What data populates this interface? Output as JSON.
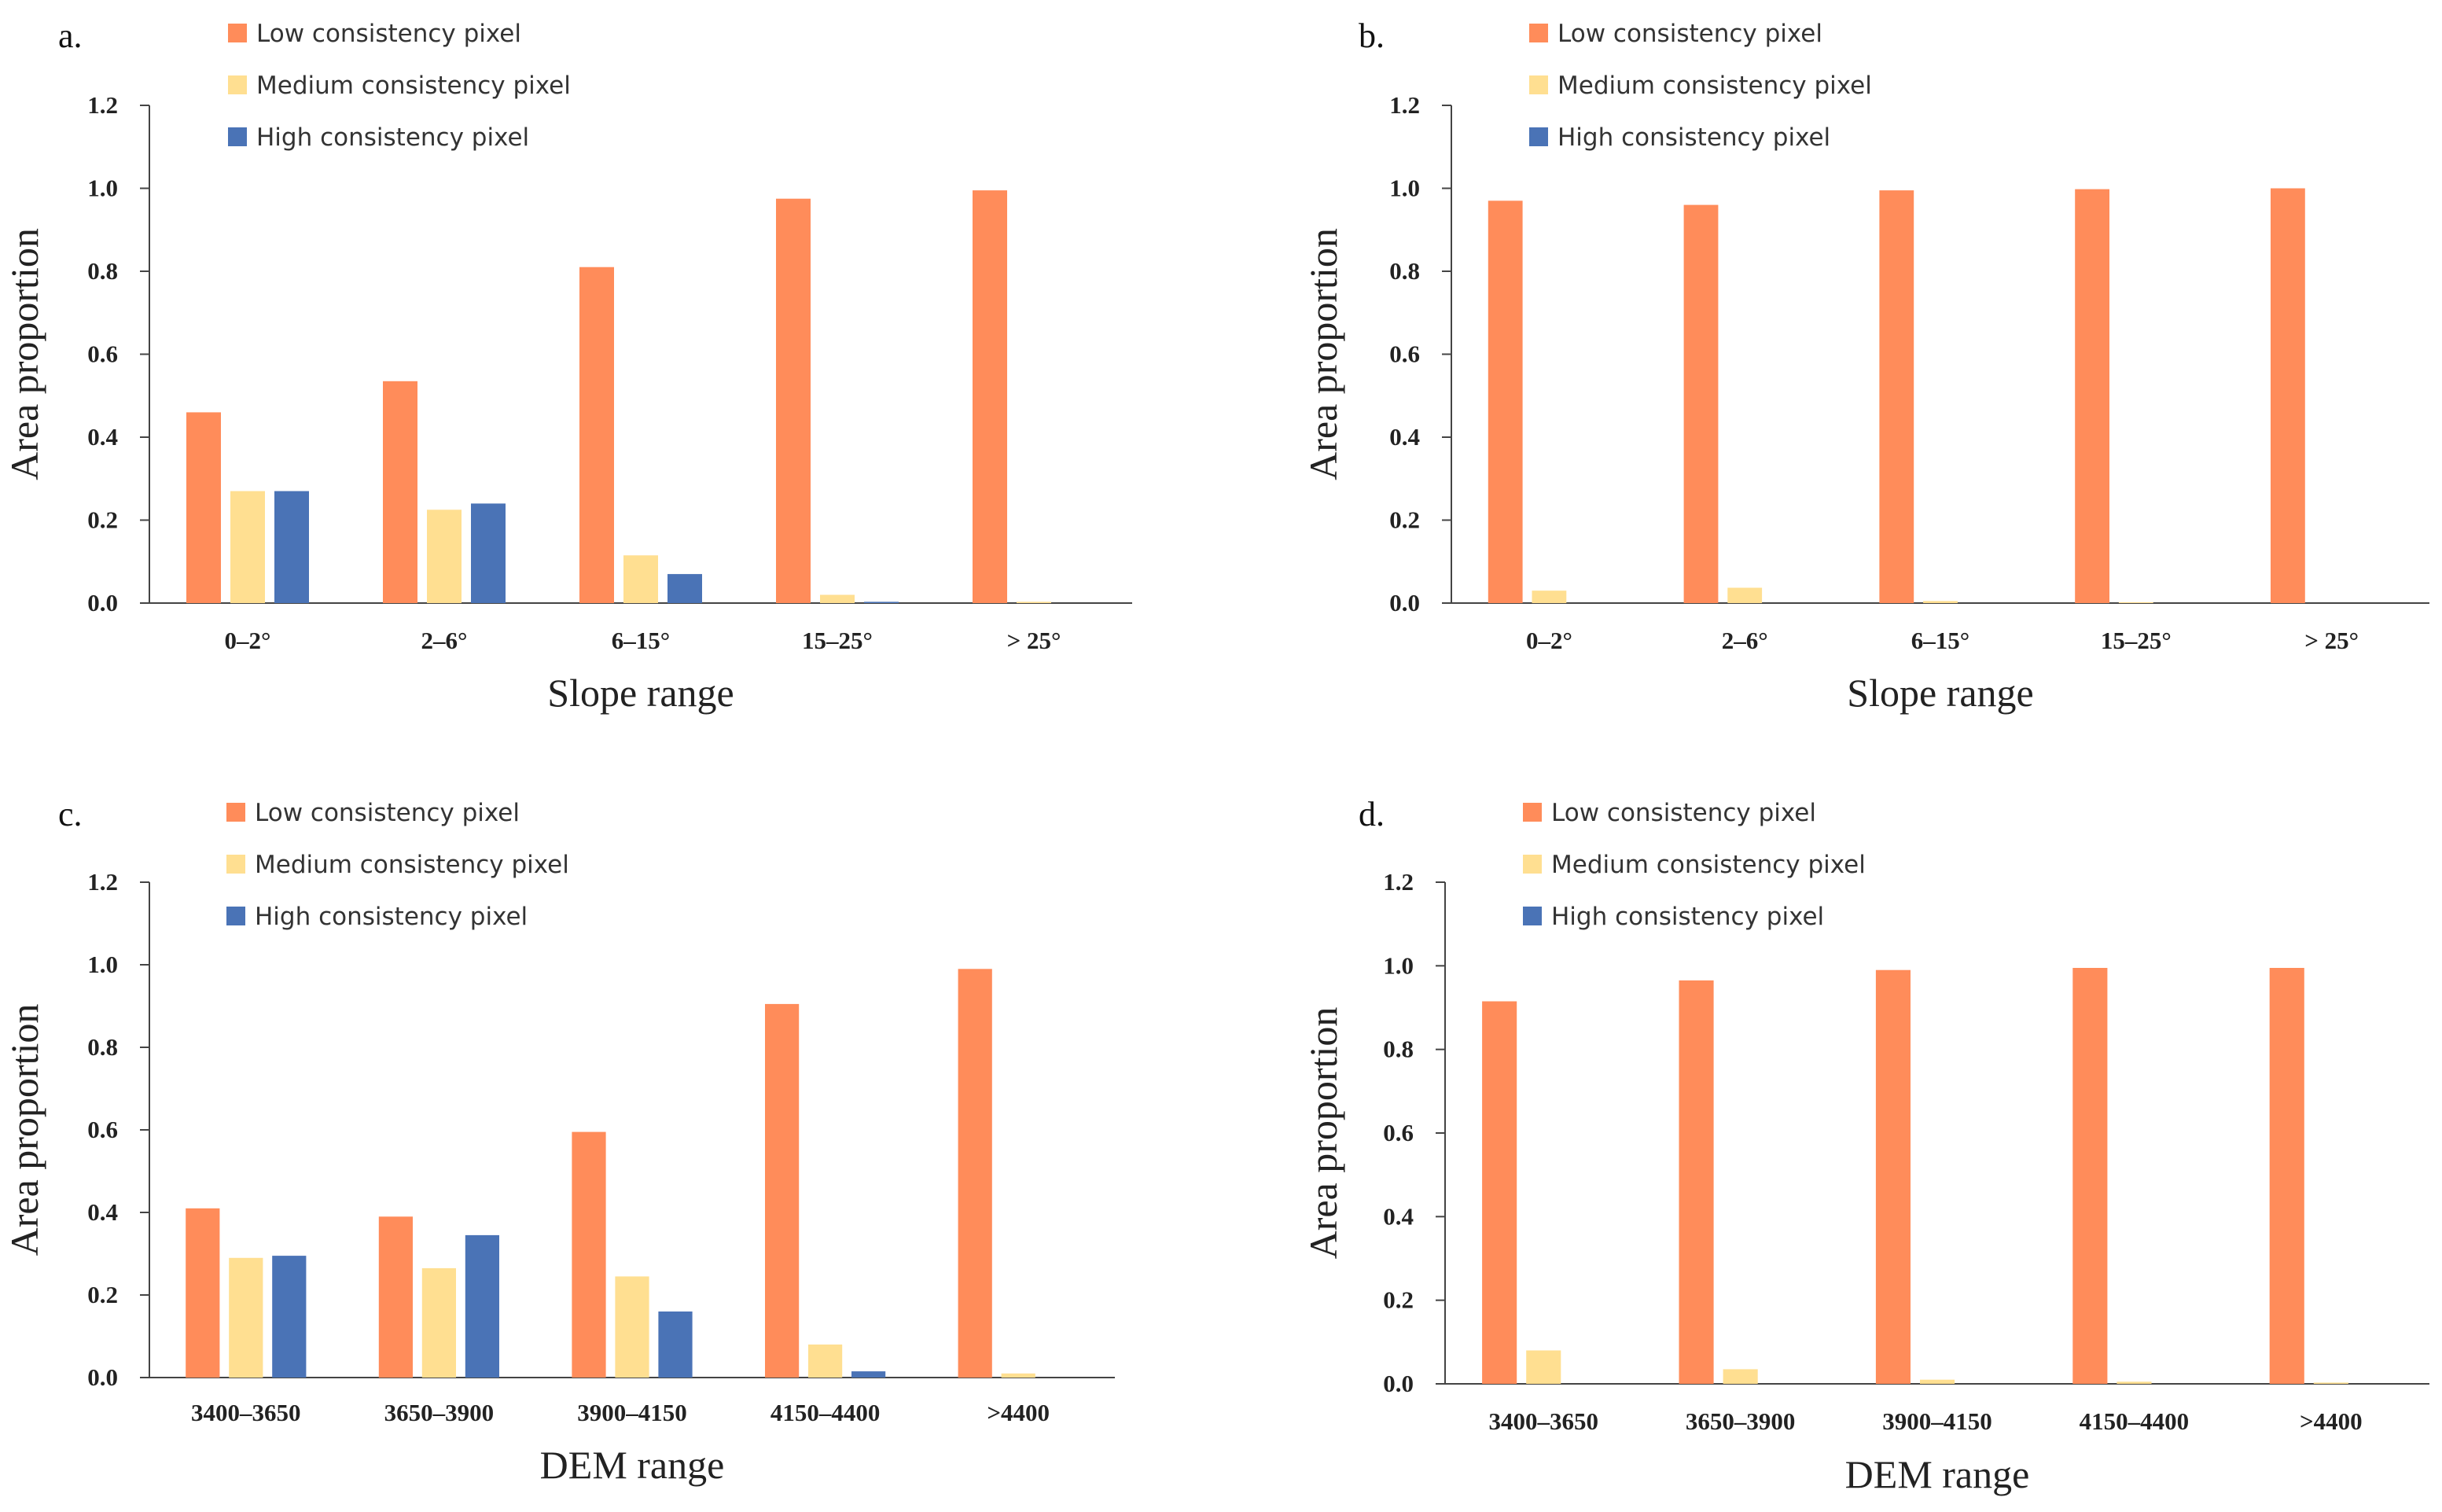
{
  "colors": {
    "low": "#FF8C5A",
    "medium": "#FFDF91",
    "high": "#4A73B6"
  },
  "chart_data": [
    {
      "type": "bar",
      "panel_label": "a.",
      "categories": [
        "0–2°",
        "2–6°",
        "6–15°",
        "15–25°",
        "> 25°"
      ],
      "series": [
        {
          "name": "Low consistency pixel",
          "values": [
            0.46,
            0.535,
            0.81,
            0.975,
            0.995
          ]
        },
        {
          "name": "Medium consistency pixel",
          "values": [
            0.27,
            0.225,
            0.115,
            0.02,
            0.003
          ]
        },
        {
          "name": "High consistency pixel",
          "values": [
            0.27,
            0.24,
            0.07,
            0.003,
            0.0
          ]
        }
      ],
      "xlabel": "Slope range",
      "ylabel": "Area proportion",
      "ylim": [
        0,
        1.2
      ],
      "yticks": [
        "0.0",
        "0.2",
        "0.4",
        "0.6",
        "0.8",
        "1.0",
        "1.2"
      ],
      "legend": "top-left"
    },
    {
      "type": "bar",
      "panel_label": "b.",
      "categories": [
        "0–2°",
        "2–6°",
        "6–15°",
        "15–25°",
        "> 25°"
      ],
      "series": [
        {
          "name": "Low consistency pixel",
          "values": [
            0.97,
            0.96,
            0.995,
            0.998,
            1.0
          ]
        },
        {
          "name": "Medium consistency pixel",
          "values": [
            0.03,
            0.037,
            0.005,
            0.002,
            0.0
          ]
        },
        {
          "name": "High consistency pixel",
          "values": [
            0.0,
            0.0,
            0.0,
            0.0,
            0.0
          ]
        }
      ],
      "xlabel": "Slope range",
      "ylabel": "Area proportion",
      "ylim": [
        0,
        1.2
      ],
      "yticks": [
        "0.0",
        "0.2",
        "0.4",
        "0.6",
        "0.8",
        "1.0",
        "1.2"
      ],
      "legend": "top-left"
    },
    {
      "type": "bar",
      "panel_label": "c.",
      "categories": [
        "3400–3650",
        "3650–3900",
        "3900–4150",
        "4150–4400",
        ">4400"
      ],
      "series": [
        {
          "name": "Low consistency pixel",
          "values": [
            0.41,
            0.39,
            0.595,
            0.905,
            0.99
          ]
        },
        {
          "name": "Medium consistency pixel",
          "values": [
            0.29,
            0.265,
            0.245,
            0.08,
            0.01
          ]
        },
        {
          "name": "High consistency pixel",
          "values": [
            0.295,
            0.345,
            0.16,
            0.015,
            0.0
          ]
        }
      ],
      "xlabel": "DEM range",
      "ylabel": "Area proportion",
      "ylim": [
        0,
        1.2
      ],
      "yticks": [
        "0.0",
        "0.2",
        "0.4",
        "0.6",
        "0.8",
        "1.0",
        "1.2"
      ],
      "legend": "top-left"
    },
    {
      "type": "bar",
      "panel_label": "d.",
      "categories": [
        "3400–3650",
        "3650–3900",
        "3900–4150",
        "4150–4400",
        ">4400"
      ],
      "series": [
        {
          "name": "Low consistency pixel",
          "values": [
            0.915,
            0.965,
            0.99,
            0.995,
            0.995
          ]
        },
        {
          "name": "Medium consistency pixel",
          "values": [
            0.08,
            0.035,
            0.01,
            0.005,
            0.003
          ]
        },
        {
          "name": "High consistency pixel",
          "values": [
            0.0,
            0.0,
            0.0,
            0.0,
            0.0
          ]
        }
      ],
      "xlabel": "DEM range",
      "ylabel": "Area proportion",
      "ylim": [
        0,
        1.2
      ],
      "yticks": [
        "0.0",
        "0.2",
        "0.4",
        "0.6",
        "0.8",
        "1.0",
        "1.2"
      ],
      "legend": "top-left"
    }
  ]
}
